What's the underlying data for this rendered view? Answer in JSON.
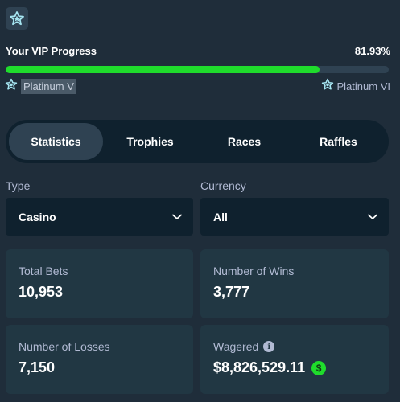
{
  "vip": {
    "badge_icon": "star-badge-icon",
    "title": "Your VIP Progress",
    "percent_label": "81.93%",
    "percent_value": 81.93,
    "current_tier": "Platinum V",
    "next_tier": "Platinum VI",
    "tier_icon": "star-outline-icon",
    "accent_color": "#1fdc2c"
  },
  "tabs": [
    {
      "label": "Statistics",
      "active": true
    },
    {
      "label": "Trophies",
      "active": false
    },
    {
      "label": "Races",
      "active": false
    },
    {
      "label": "Raffles",
      "active": false
    }
  ],
  "filters": {
    "type": {
      "label": "Type",
      "value": "Casino"
    },
    "currency": {
      "label": "Currency",
      "value": "All"
    }
  },
  "stats": {
    "total_bets": {
      "label": "Total Bets",
      "value": "10,953"
    },
    "wins": {
      "label": "Number of Wins",
      "value": "3,777"
    },
    "losses": {
      "label": "Number of Losses",
      "value": "7,150"
    },
    "wagered": {
      "label": "Wagered",
      "value": "$8,826,529.11",
      "info_icon": "info-icon",
      "currency_icon": "dollar-icon"
    }
  }
}
